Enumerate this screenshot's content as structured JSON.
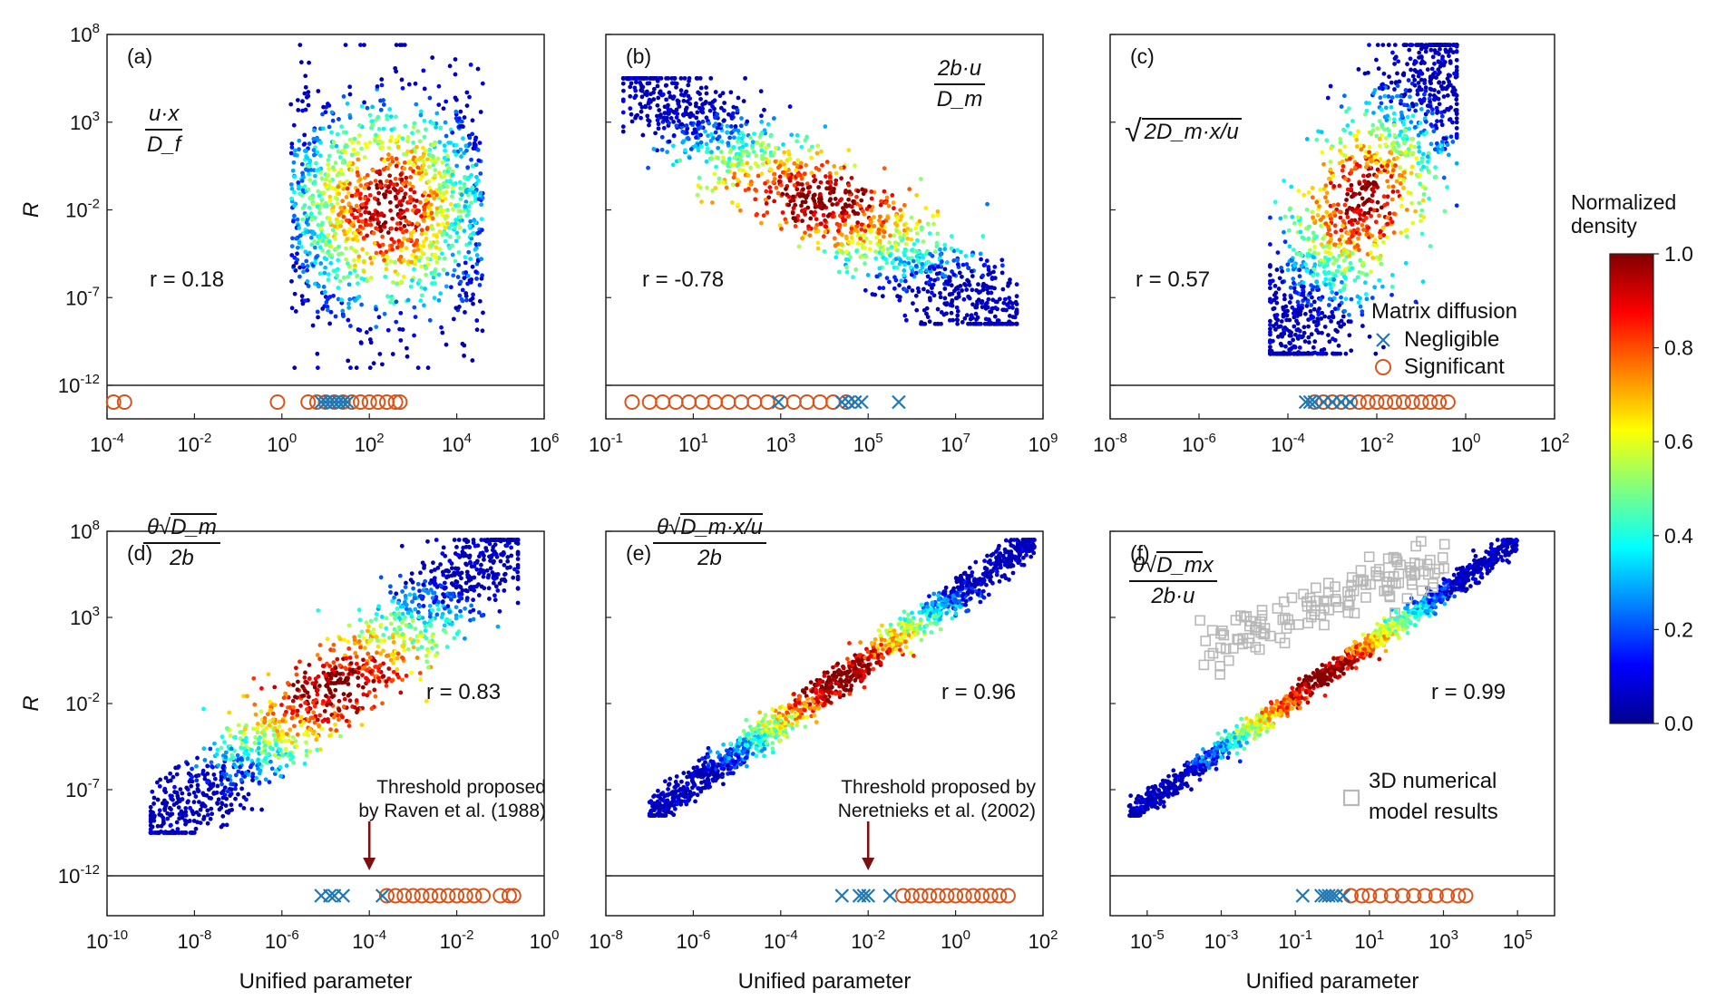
{
  "figure": {
    "y_label": "R",
    "x_label": "Unified parameter",
    "colorbar": {
      "title_line1": "Normalized",
      "title_line2": "density",
      "ticks": [
        "1.0",
        "0.8",
        "0.6",
        "0.4",
        "0.2",
        "0.0"
      ],
      "colors": [
        "#00008f",
        "#0000ff",
        "#0080ff",
        "#00ffff",
        "#80ff80",
        "#ffff00",
        "#ff8000",
        "#ff0000",
        "#800000"
      ]
    },
    "legend": {
      "title": "Matrix diffusion",
      "negligible": "Negligible",
      "significant": "Significant",
      "negligible_color": "#1f77b4",
      "significant_color": "#d9541a"
    },
    "model_legend": {
      "line1": "3D numerical",
      "line2": "model results",
      "color": "#b8b8b8"
    },
    "y_ticks": [
      "10^8",
      "10^3",
      "10^-2",
      "10^-7",
      "10^-12"
    ]
  },
  "chart_data": [
    {
      "type": "scatter",
      "panel": "(a)",
      "formula": {
        "numerator": "u·x",
        "denominator": "D_f"
      },
      "r_text": "r = 0.18",
      "r": 0.18,
      "xlabel": "",
      "ylabel": "R",
      "xlim_log10": [
        -4,
        6
      ],
      "x_ticks": [
        "10^-4",
        "10^-2",
        "10^0",
        "10^2",
        "10^4",
        "10^6"
      ],
      "ylim_log10": [
        -12,
        8
      ],
      "density_cloud": {
        "x_log10_range": [
          0.2,
          4.6
        ],
        "y_log10_range": [
          -11,
          7.4
        ]
      },
      "negligible_x_log10": [
        0.9,
        1.0,
        1.1,
        1.2,
        1.3,
        1.4,
        1.5
      ],
      "significant_x_log10": [
        -3.85,
        -3.6,
        -0.1,
        0.6,
        0.8,
        1.0,
        1.2,
        1.4,
        1.6,
        1.8,
        2.0,
        2.2,
        2.4,
        2.6,
        2.7
      ]
    },
    {
      "type": "scatter",
      "panel": "(b)",
      "formula": {
        "numerator": "2b·u",
        "denominator": "D_m"
      },
      "r_text": "r = -0.78",
      "r": -0.78,
      "xlabel": "",
      "ylabel": "",
      "xlim_log10": [
        -1,
        9
      ],
      "x_ticks": [
        "10^-1",
        "10^1",
        "10^3",
        "10^5",
        "10^7",
        "10^9"
      ],
      "ylim_log10": [
        -12,
        8
      ],
      "density_cloud": {
        "x_log10_range": [
          -0.6,
          8.4
        ],
        "y_log10_range": [
          -8.5,
          5.5
        ]
      },
      "negligible_x_log10": [
        2.95,
        4.4,
        4.55,
        4.7,
        4.85,
        5.7
      ],
      "significant_x_log10": [
        -0.4,
        0.0,
        0.3,
        0.6,
        0.9,
        1.2,
        1.5,
        1.8,
        2.1,
        2.4,
        2.7,
        3.0,
        3.3,
        3.6,
        3.9,
        4.2,
        4.5
      ]
    },
    {
      "type": "scatter",
      "panel": "(c)",
      "formula": {
        "radicand": "2D_m·x/u"
      },
      "r_text": "r = 0.57",
      "r": 0.57,
      "xlabel": "",
      "ylabel": "",
      "xlim_log10": [
        -8,
        2
      ],
      "x_ticks": [
        "10^-8",
        "10^-6",
        "10^-4",
        "10^-2",
        "10^0",
        "10^2"
      ],
      "ylim_log10": [
        -12,
        8
      ],
      "density_cloud": {
        "x_log10_range": [
          -4.4,
          -0.2
        ],
        "y_log10_range": [
          -10.2,
          7.4
        ]
      },
      "negligible_x_log10": [
        -3.6,
        -3.5,
        -3.4,
        -3.2,
        -3.0,
        -2.8,
        -2.6
      ],
      "significant_x_log10": [
        -3.4,
        -3.2,
        -3.0,
        -2.8,
        -2.6,
        -2.4,
        -2.2,
        -2.0,
        -1.8,
        -1.6,
        -1.4,
        -1.2,
        -1.0,
        -0.8,
        -0.6,
        -0.4
      ]
    },
    {
      "type": "scatter",
      "panel": "(d)",
      "formula": {
        "numerator_prefix": "θ",
        "radicand": "D_m",
        "denominator": "2b"
      },
      "r_text": "r = 0.83",
      "r": 0.83,
      "xlabel": "Unified parameter",
      "ylabel": "R",
      "xlim_log10": [
        -10,
        0
      ],
      "x_ticks": [
        "10^-10",
        "10^-8",
        "10^-6",
        "10^-4",
        "10^-2",
        "10^0"
      ],
      "ylim_log10": [
        -12,
        8
      ],
      "threshold_label_line1": "Threshold proposed",
      "threshold_label_line2": "by Raven et al. (1988)",
      "threshold_x_log10": -4,
      "density_cloud": {
        "x_log10_range": [
          -9.0,
          -0.6
        ],
        "y_log10_range": [
          -9.5,
          7.5
        ]
      },
      "negligible_x_log10": [
        -5.1,
        -4.9,
        -4.8,
        -4.6,
        -3.7
      ],
      "significant_x_log10": [
        -3.6,
        -3.4,
        -3.2,
        -3.0,
        -2.8,
        -2.6,
        -2.4,
        -2.2,
        -2.0,
        -1.8,
        -1.6,
        -1.4,
        -1.0,
        -0.8,
        -0.7
      ]
    },
    {
      "type": "scatter",
      "panel": "(e)",
      "formula": {
        "numerator_prefix": "θ",
        "radicand": "D_m·x/u",
        "denominator": "2b"
      },
      "r_text": "r = 0.96",
      "r": 0.96,
      "xlabel": "Unified parameter",
      "ylabel": "",
      "xlim_log10": [
        -8,
        2
      ],
      "x_ticks": [
        "10^-8",
        "10^-6",
        "10^-4",
        "10^-2",
        "10^0",
        "10^2"
      ],
      "ylim_log10": [
        -12,
        8
      ],
      "threshold_label_line1": "Threshold proposed by",
      "threshold_label_line2": "Neretnieks et al. (2002)",
      "threshold_x_log10": -2,
      "density_cloud": {
        "x_log10_range": [
          -7.0,
          1.8
        ],
        "y_log10_range": [
          -8.5,
          7.5
        ]
      },
      "negligible_x_log10": [
        -2.6,
        -2.2,
        -2.1,
        -2.0,
        -1.5
      ],
      "significant_x_log10": [
        -1.2,
        -1.0,
        -0.8,
        -0.6,
        -0.4,
        -0.2,
        0.0,
        0.2,
        0.4,
        0.6,
        0.8,
        1.0,
        1.2
      ]
    },
    {
      "type": "scatter",
      "panel": "(f)",
      "formula": {
        "numerator_prefix": "θ",
        "radicand": "D_m",
        "numerator_suffix": "x",
        "denominator": "2b·u"
      },
      "r_text": "r = 0.99",
      "r": 0.99,
      "xlabel": "Unified parameter",
      "ylabel": "",
      "xlim_log10": [
        -6,
        6
      ],
      "x_ticks": [
        "10^-5",
        "10^-3",
        "10^-1",
        "10^1",
        "10^3",
        "10^5"
      ],
      "ylim_log10": [
        -12,
        8
      ],
      "density_cloud": {
        "x_log10_range": [
          -5.5,
          5.0
        ],
        "y_log10_range": [
          -8.5,
          7.5
        ]
      },
      "model_results": {
        "x_log10_range": [
          -3.6,
          3.2
        ],
        "y_log10_range": [
          1.0,
          8.0
        ]
      },
      "negligible_x_log10": [
        -0.8,
        -0.3,
        -0.2,
        -0.1,
        0.0,
        0.1,
        0.3
      ],
      "significant_x_log10": [
        0.5,
        0.8,
        1.0,
        1.3,
        1.6,
        1.9,
        2.2,
        2.5,
        2.8,
        3.1,
        3.4,
        3.6
      ]
    }
  ]
}
